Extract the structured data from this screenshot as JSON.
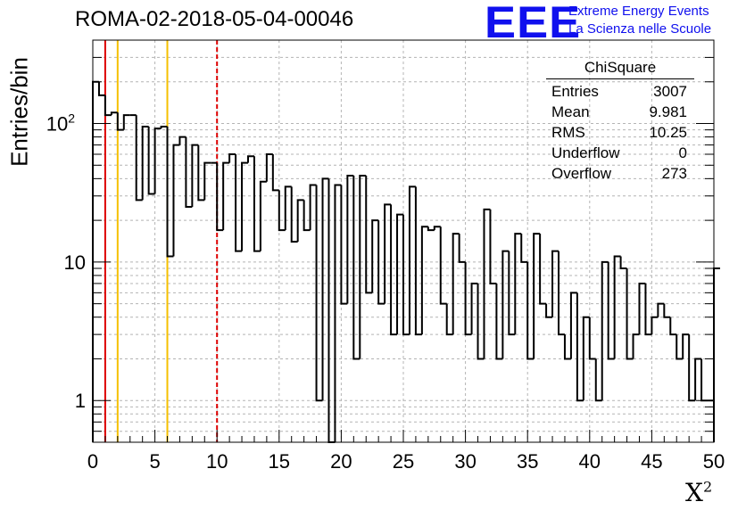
{
  "title": "ROMA-02-2018-05-04-00046",
  "logo": {
    "text": "EEE",
    "line1": "Extreme Energy Events",
    "line2": "La Scienza nelle Scuole",
    "color": "#1010ee"
  },
  "stats": {
    "title": "ChiSquare",
    "rows": [
      {
        "label": "Entries",
        "value": "3007"
      },
      {
        "label": "Mean",
        "value": "9.981"
      },
      {
        "label": "RMS",
        "value": "10.25"
      },
      {
        "label": "Underflow",
        "value": "0"
      },
      {
        "label": "Overflow",
        "value": "273"
      }
    ]
  },
  "chart_data": {
    "type": "histogram",
    "title": "ROMA-02-2018-05-04-00046",
    "xlabel": "X",
    "xlabel_sup": "2",
    "ylabel": "Entries/bin",
    "xlim": [
      0,
      50
    ],
    "ylim": [
      0.5,
      400
    ],
    "yscale": "log",
    "grid": true,
    "bin_width": 0.5,
    "x_ticks": [
      0,
      5,
      10,
      15,
      20,
      25,
      30,
      35,
      40,
      45,
      50
    ],
    "y_ticks": [
      {
        "value": 1,
        "label": "1"
      },
      {
        "value": 10,
        "label": "10"
      },
      {
        "value": 100,
        "label": "10",
        "sup": "2"
      }
    ],
    "values": [
      200,
      160,
      115,
      120,
      90,
      115,
      115,
      28,
      95,
      31,
      92,
      95,
      11,
      70,
      80,
      25,
      70,
      28,
      52,
      52,
      17,
      52,
      60,
      12,
      52,
      58,
      12,
      38,
      60,
      33,
      17,
      35,
      14,
      28,
      17,
      36,
      1,
      40,
      0.4,
      36,
      5,
      42,
      2,
      42,
      6,
      20,
      5,
      26,
      3,
      22,
      3,
      35,
      3,
      18,
      17,
      18,
      5,
      3,
      16,
      10,
      3,
      7,
      2,
      24,
      7,
      2,
      12,
      3,
      16,
      10,
      2,
      16,
      5,
      4,
      12,
      3,
      2,
      6,
      1,
      4,
      2,
      1,
      10,
      2,
      11,
      9,
      2,
      3,
      7,
      3,
      4,
      5,
      4,
      3,
      2,
      3,
      1,
      2,
      1,
      1,
      9
    ],
    "vlines": [
      {
        "x": 1,
        "color": "#dd0000",
        "style": "solid"
      },
      {
        "x": 2,
        "color": "#f5c000",
        "style": "solid"
      },
      {
        "x": 6,
        "color": "#f5c000",
        "style": "solid"
      },
      {
        "x": 10,
        "color": "#dd0000",
        "style": "dashed"
      }
    ]
  }
}
